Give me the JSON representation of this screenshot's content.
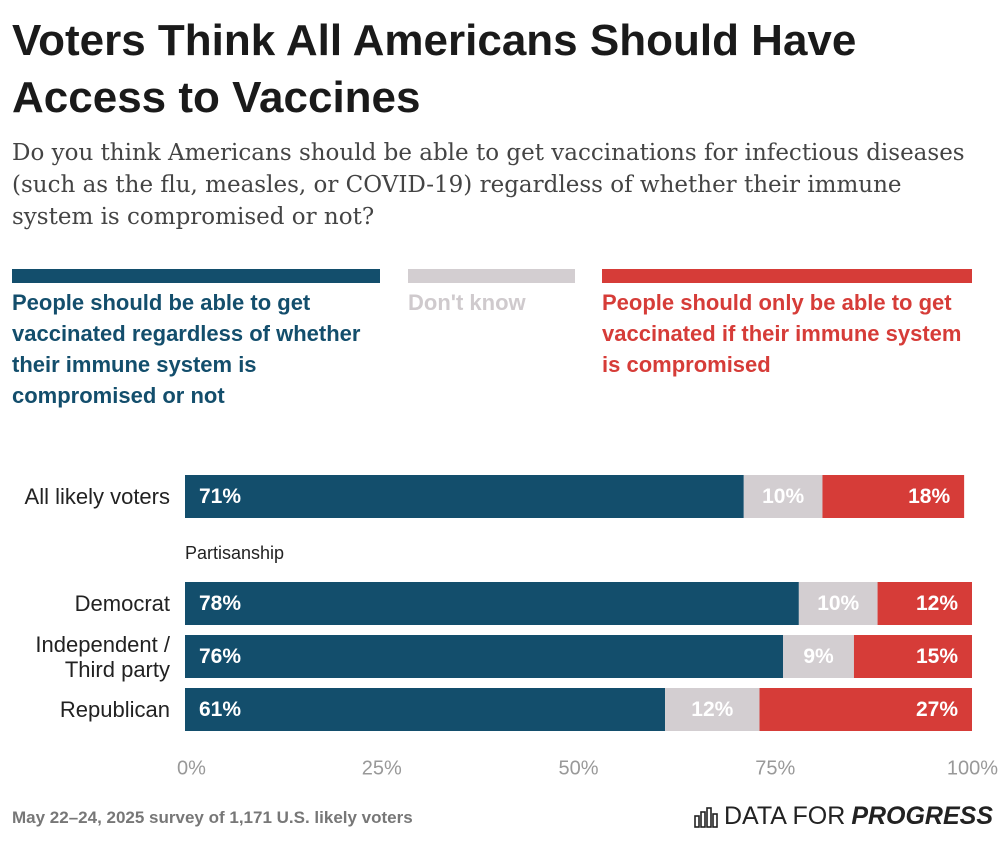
{
  "chart_data": {
    "type": "stacked-bar-horizontal",
    "title": "Voters Think All Americans Should Have Access to Vaccines",
    "subtitle": "Do you think Americans should be able to get vaccinations for infectious diseases (such as the flu, measles, or COVID-19) regardless of whether their immune system is compromised or not?",
    "categories": [
      "All likely voters",
      "Democrat",
      "Independent / Third party",
      "Republican"
    ],
    "group_label": "Partisanship",
    "series": [
      {
        "name": "People should be able to get vaccinated regardless of whether their immune system is compromised or not",
        "color": "#134e6c",
        "values": [
          71,
          78,
          76,
          61
        ],
        "value_labels": [
          "71%",
          "78%",
          "76%",
          "61%"
        ]
      },
      {
        "name": "Don't know",
        "color": "#d3ced1",
        "values": [
          10,
          10,
          9,
          12
        ],
        "value_labels": [
          "10%",
          "10%",
          "9%",
          "12%"
        ]
      },
      {
        "name": "People should only be able to get vaccinated if their immune system is compromised",
        "color": "#d63c38",
        "values": [
          18,
          12,
          15,
          27
        ],
        "value_labels": [
          "18%",
          "12%",
          "15%",
          "27%"
        ]
      }
    ],
    "xlim": [
      0,
      100
    ],
    "xticks": [
      {
        "value": 0,
        "label": "0%"
      },
      {
        "value": 25,
        "label": "25%"
      },
      {
        "value": 50,
        "label": "50%"
      },
      {
        "value": 75,
        "label": "75%"
      },
      {
        "value": 100,
        "label": "100%"
      }
    ],
    "grid": false,
    "source": "May 22–24, 2025 survey of 1,171 U.S. likely voters",
    "logo": [
      "DATA FOR",
      "PROGRESS"
    ]
  }
}
